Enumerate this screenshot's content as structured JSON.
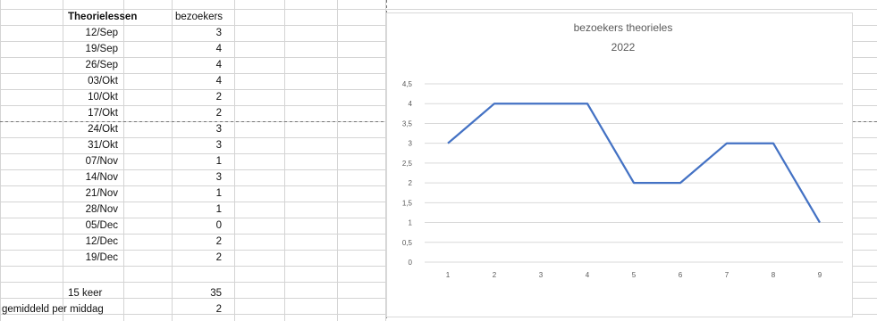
{
  "sheet": {
    "headers": {
      "lesson": "Theorielessen",
      "visitors": "bezoekers"
    },
    "rows": [
      {
        "date": "12/Sep",
        "visitors": "3"
      },
      {
        "date": "19/Sep",
        "visitors": "4"
      },
      {
        "date": "26/Sep",
        "visitors": "4"
      },
      {
        "date": "03/Okt",
        "visitors": "4"
      },
      {
        "date": "10/Okt",
        "visitors": "2"
      },
      {
        "date": "17/Okt",
        "visitors": "2"
      },
      {
        "date": "24/Okt",
        "visitors": "3"
      },
      {
        "date": "31/Okt",
        "visitors": "3"
      },
      {
        "date": "07/Nov",
        "visitors": "1"
      },
      {
        "date": "14/Nov",
        "visitors": "3"
      },
      {
        "date": "21/Nov",
        "visitors": "1"
      },
      {
        "date": "28/Nov",
        "visitors": "1"
      },
      {
        "date": "05/Dec",
        "visitors": "0"
      },
      {
        "date": "12/Dec",
        "visitors": "2"
      },
      {
        "date": "19/Dec",
        "visitors": "2"
      }
    ],
    "total": {
      "label": "15 keer",
      "value": "35"
    },
    "average": {
      "label": "gemiddeld per middag",
      "value": "2"
    }
  },
  "chart_data": {
    "type": "line",
    "title": "bezoekers theorieles",
    "subtitle": "2022",
    "xlabel": "",
    "ylabel": "",
    "categories": [
      "1",
      "2",
      "3",
      "4",
      "5",
      "6",
      "7",
      "8",
      "9"
    ],
    "values": [
      3,
      4,
      4,
      4,
      2,
      2,
      3,
      3,
      1
    ],
    "ylim": [
      0,
      4.5
    ],
    "yticks": [
      "0",
      "0,5",
      "1",
      "1,5",
      "2",
      "2,5",
      "3",
      "3,5",
      "4",
      "4,5"
    ],
    "grid": true,
    "line_color": "#4472c4"
  }
}
